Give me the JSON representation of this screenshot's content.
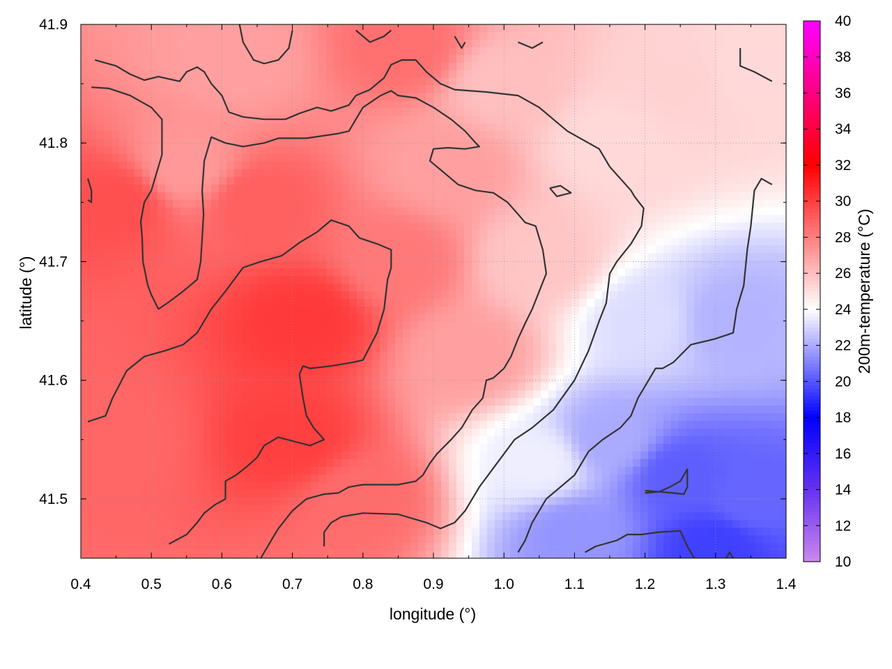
{
  "chart_data": {
    "type": "heatmap",
    "title": "",
    "xlabel": "longitude (°)",
    "ylabel": "latitude (°)",
    "colorbar_label": "200m-temperature (°C)",
    "xlim": [
      0.4,
      1.4
    ],
    "ylim": [
      41.45,
      41.9
    ],
    "x_ticks": [
      "0.4",
      "0.5",
      "0.6",
      "0.7",
      "0.8",
      "0.9",
      "1.0",
      "1.1",
      "1.2",
      "1.3",
      "1.4"
    ],
    "y_ticks": [
      "41.5",
      "41.6",
      "41.7",
      "41.8",
      "41.9"
    ],
    "colorbar_range": [
      10,
      40
    ],
    "colorbar_ticks": [
      "10",
      "12",
      "14",
      "16",
      "18",
      "20",
      "22",
      "24",
      "26",
      "28",
      "30",
      "32",
      "34",
      "36",
      "38",
      "40"
    ],
    "grid": true,
    "colormap": [
      {
        "value": 10,
        "color": "#cc88ee"
      },
      {
        "value": 14,
        "color": "#6633ee"
      },
      {
        "value": 18,
        "color": "#0000ff"
      },
      {
        "value": 24,
        "color": "#ffffff"
      },
      {
        "value": 32,
        "color": "#ff0000"
      },
      {
        "value": 40,
        "color": "#ff00ff"
      }
    ],
    "temperature_field": [
      {
        "lon": 0.45,
        "lat": 41.75,
        "t": 29.5
      },
      {
        "lon": 0.45,
        "lat": 41.55,
        "t": 28.8
      },
      {
        "lon": 0.55,
        "lat": 41.78,
        "t": 27.2
      },
      {
        "lon": 0.62,
        "lat": 41.87,
        "t": 27.0
      },
      {
        "lon": 0.72,
        "lat": 41.65,
        "t": 30.2
      },
      {
        "lon": 0.7,
        "lat": 41.55,
        "t": 30.0
      },
      {
        "lon": 0.65,
        "lat": 41.75,
        "t": 29.0
      },
      {
        "lon": 0.85,
        "lat": 41.7,
        "t": 28.2
      },
      {
        "lon": 0.86,
        "lat": 41.88,
        "t": 28.5
      },
      {
        "lon": 0.8,
        "lat": 41.5,
        "t": 28.6
      },
      {
        "lon": 0.92,
        "lat": 41.78,
        "t": 27.0
      },
      {
        "lon": 0.95,
        "lat": 41.62,
        "t": 27.0
      },
      {
        "lon": 1.0,
        "lat": 41.85,
        "t": 26.0
      },
      {
        "lon": 1.05,
        "lat": 41.7,
        "t": 25.8
      },
      {
        "lon": 1.15,
        "lat": 41.8,
        "t": 25.2
      },
      {
        "lon": 1.25,
        "lat": 41.85,
        "t": 25.4
      },
      {
        "lon": 1.35,
        "lat": 41.86,
        "t": 25.2
      },
      {
        "lon": 1.05,
        "lat": 41.53,
        "t": 23.6
      },
      {
        "lon": 1.15,
        "lat": 41.55,
        "t": 22.0
      },
      {
        "lon": 1.25,
        "lat": 41.52,
        "t": 20.2
      },
      {
        "lon": 1.35,
        "lat": 41.5,
        "t": 20.4
      },
      {
        "lon": 1.32,
        "lat": 41.65,
        "t": 22.2
      },
      {
        "lon": 1.2,
        "lat": 41.65,
        "t": 23.2
      },
      {
        "lon": 1.1,
        "lat": 41.47,
        "t": 21.5
      },
      {
        "lon": 1.3,
        "lat": 41.46,
        "t": 19.5
      }
    ],
    "contours": [
      [
        [
          0.42,
          41.87
        ],
        [
          0.45,
          41.865
        ],
        [
          0.47,
          41.858
        ],
        [
          0.49,
          41.853
        ],
        [
          0.51,
          41.856
        ],
        [
          0.54,
          41.852
        ],
        [
          0.55,
          41.86
        ],
        [
          0.565,
          41.864
        ],
        [
          0.575,
          41.86
        ],
        [
          0.585,
          41.85
        ],
        [
          0.6,
          41.84
        ],
        [
          0.61,
          41.826
        ],
        [
          0.63,
          41.822
        ],
        [
          0.66,
          41.82
        ],
        [
          0.69,
          41.82
        ],
        [
          0.71,
          41.825
        ],
        [
          0.735,
          41.83
        ],
        [
          0.755,
          41.827
        ],
        [
          0.78,
          41.832
        ],
        [
          0.79,
          41.84
        ],
        [
          0.81,
          41.845
        ],
        [
          0.83,
          41.855
        ],
        [
          0.84,
          41.866
        ],
        [
          0.855,
          41.87
        ],
        [
          0.875,
          41.87
        ],
        [
          0.89,
          41.86
        ],
        [
          0.91,
          41.85
        ],
        [
          0.93,
          41.845
        ],
        [
          0.975,
          41.843
        ],
        [
          1.02,
          41.84
        ],
        [
          1.05,
          41.83
        ],
        [
          1.07,
          41.82
        ],
        [
          1.09,
          41.81
        ],
        [
          1.12,
          41.8
        ],
        [
          1.135,
          41.795
        ],
        [
          1.15,
          41.78
        ],
        [
          1.165,
          41.77
        ],
        [
          1.18,
          41.76
        ],
        [
          1.185,
          41.755
        ],
        [
          1.198,
          41.745
        ],
        [
          1.195,
          41.73
        ],
        [
          1.18,
          41.715
        ],
        [
          1.16,
          41.7
        ],
        [
          1.15,
          41.69
        ],
        [
          1.145,
          41.665
        ],
        [
          1.135,
          41.65
        ],
        [
          1.12,
          41.625
        ],
        [
          1.1,
          41.6
        ],
        [
          1.07,
          41.575
        ],
        [
          1.04,
          41.56
        ],
        [
          1.015,
          41.55
        ],
        [
          0.99,
          41.53
        ],
        [
          0.965,
          41.51
        ],
        [
          0.945,
          41.49
        ],
        [
          0.93,
          41.48
        ],
        [
          0.91,
          41.475
        ],
        [
          0.89,
          41.48
        ],
        [
          0.85,
          41.487
        ],
        [
          0.8,
          41.488
        ],
        [
          0.77,
          41.485
        ],
        [
          0.755,
          41.48
        ],
        [
          0.745,
          41.472
        ],
        [
          0.745,
          41.46
        ]
      ],
      [
        [
          0.415,
          41.847
        ],
        [
          0.44,
          41.846
        ],
        [
          0.47,
          41.84
        ],
        [
          0.5,
          41.83
        ],
        [
          0.515,
          41.82
        ],
        [
          0.515,
          41.81
        ],
        [
          0.515,
          41.79
        ],
        [
          0.51,
          41.78
        ],
        [
          0.5,
          41.76
        ],
        [
          0.49,
          41.75
        ],
        [
          0.485,
          41.734
        ],
        [
          0.487,
          41.72
        ],
        [
          0.488,
          41.7
        ],
        [
          0.495,
          41.68
        ],
        [
          0.5,
          41.672
        ],
        [
          0.51,
          41.66
        ],
        [
          0.525,
          41.666
        ],
        [
          0.545,
          41.675
        ],
        [
          0.555,
          41.68
        ],
        [
          0.565,
          41.685
        ],
        [
          0.57,
          41.7
        ],
        [
          0.572,
          41.72
        ],
        [
          0.574,
          41.74
        ],
        [
          0.572,
          41.76
        ],
        [
          0.575,
          41.785
        ],
        [
          0.585,
          41.805
        ],
        [
          0.605,
          41.8
        ],
        [
          0.63,
          41.797
        ],
        [
          0.66,
          41.8
        ],
        [
          0.68,
          41.804
        ],
        [
          0.72,
          41.804
        ],
        [
          0.765,
          41.808
        ],
        [
          0.78,
          41.81
        ],
        [
          0.8,
          41.83
        ],
        [
          0.825,
          41.84
        ],
        [
          0.84,
          41.844
        ],
        [
          0.85,
          41.84
        ],
        [
          0.875,
          41.838
        ],
        [
          0.9,
          41.83
        ],
        [
          0.925,
          41.82
        ],
        [
          0.945,
          41.81
        ],
        [
          0.96,
          41.8
        ],
        [
          0.965,
          41.797
        ],
        [
          0.945,
          41.795
        ],
        [
          0.92,
          41.796
        ],
        [
          0.9,
          41.795
        ],
        [
          0.895,
          41.785
        ],
        [
          0.915,
          41.775
        ],
        [
          0.935,
          41.765
        ],
        [
          0.96,
          41.76
        ],
        [
          0.985,
          41.758
        ],
        [
          1.005,
          41.75
        ],
        [
          1.02,
          41.74
        ],
        [
          1.03,
          41.733
        ],
        [
          1.045,
          41.73
        ],
        [
          1.055,
          41.71
        ],
        [
          1.06,
          41.69
        ],
        [
          1.05,
          41.675
        ],
        [
          1.04,
          41.66
        ],
        [
          1.03,
          41.648
        ],
        [
          1.02,
          41.635
        ],
        [
          1.01,
          41.62
        ],
        [
          1.0,
          41.61
        ],
        [
          0.985,
          41.602
        ],
        [
          0.975,
          41.6
        ],
        [
          0.97,
          41.585
        ],
        [
          0.955,
          41.575
        ],
        [
          0.94,
          41.56
        ],
        [
          0.925,
          41.55
        ],
        [
          0.905,
          41.538
        ],
        [
          0.895,
          41.53
        ],
        [
          0.885,
          41.52
        ],
        [
          0.875,
          41.515
        ],
        [
          0.85,
          41.512
        ],
        [
          0.8,
          41.512
        ],
        [
          0.78,
          41.51
        ],
        [
          0.765,
          41.505
        ],
        [
          0.745,
          41.504
        ],
        [
          0.72,
          41.5
        ],
        [
          0.7,
          41.49
        ],
        [
          0.68,
          41.475
        ],
        [
          0.67,
          41.465
        ],
        [
          0.655,
          41.45
        ]
      ],
      [
        [
          0.41,
          41.752
        ],
        [
          0.415,
          41.75
        ],
        [
          0.415,
          41.76
        ],
        [
          0.41,
          41.77
        ]
      ],
      [
        [
          0.525,
          41.462
        ],
        [
          0.55,
          41.47
        ],
        [
          0.565,
          41.48
        ],
        [
          0.575,
          41.488
        ],
        [
          0.59,
          41.495
        ],
        [
          0.605,
          41.5
        ],
        [
          0.605,
          41.515
        ],
        [
          0.62,
          41.52
        ],
        [
          0.635,
          41.527
        ],
        [
          0.65,
          41.535
        ],
        [
          0.66,
          41.545
        ],
        [
          0.68,
          41.552
        ],
        [
          0.705,
          41.548
        ],
        [
          0.725,
          41.545
        ],
        [
          0.745,
          41.55
        ],
        [
          0.73,
          41.56
        ],
        [
          0.72,
          41.57
        ],
        [
          0.715,
          41.585
        ],
        [
          0.71,
          41.605
        ],
        [
          0.715,
          41.612
        ],
        [
          0.725,
          41.61
        ],
        [
          0.755,
          41.612
        ],
        [
          0.785,
          41.615
        ],
        [
          0.8,
          41.617
        ],
        [
          0.82,
          41.64
        ],
        [
          0.83,
          41.66
        ],
        [
          0.835,
          41.685
        ],
        [
          0.84,
          41.695
        ],
        [
          0.84,
          41.71
        ],
        [
          0.82,
          41.715
        ],
        [
          0.795,
          41.72
        ],
        [
          0.78,
          41.73
        ],
        [
          0.755,
          41.735
        ],
        [
          0.735,
          41.725
        ],
        [
          0.71,
          41.716
        ],
        [
          0.685,
          41.705
        ],
        [
          0.655,
          41.7
        ],
        [
          0.63,
          41.695
        ],
        [
          0.605,
          41.675
        ],
        [
          0.585,
          41.66
        ],
        [
          0.565,
          41.64
        ],
        [
          0.545,
          41.63
        ],
        [
          0.52,
          41.625
        ],
        [
          0.49,
          41.62
        ],
        [
          0.465,
          41.608
        ],
        [
          0.445,
          41.585
        ],
        [
          0.435,
          41.57
        ],
        [
          0.41,
          41.565
        ]
      ],
      [
        [
          1.065,
          41.762
        ],
        [
          1.08,
          41.764
        ],
        [
          1.095,
          41.758
        ],
        [
          1.075,
          41.755
        ],
        [
          1.065,
          41.762
        ]
      ],
      [
        [
          1.02,
          41.455
        ],
        [
          1.03,
          41.465
        ],
        [
          1.04,
          41.48
        ],
        [
          1.06,
          41.5
        ],
        [
          1.08,
          41.51
        ],
        [
          1.1,
          41.52
        ],
        [
          1.12,
          41.54
        ],
        [
          1.14,
          41.55
        ],
        [
          1.165,
          41.56
        ],
        [
          1.18,
          41.57
        ],
        [
          1.19,
          41.585
        ],
        [
          1.2,
          41.595
        ],
        [
          1.215,
          41.61
        ],
        [
          1.225,
          41.61
        ],
        [
          1.24,
          41.615
        ],
        [
          1.265,
          41.63
        ],
        [
          1.3,
          41.635
        ],
        [
          1.325,
          41.64
        ],
        [
          1.33,
          41.66
        ],
        [
          1.34,
          41.68
        ],
        [
          1.345,
          41.71
        ],
        [
          1.35,
          41.73
        ],
        [
          1.355,
          41.76
        ],
        [
          1.365,
          41.77
        ],
        [
          1.38,
          41.765
        ]
      ],
      [
        [
          1.2,
          41.505
        ],
        [
          1.22,
          41.506
        ],
        [
          1.235,
          41.51
        ],
        [
          1.25,
          41.515
        ],
        [
          1.255,
          41.52
        ],
        [
          1.26,
          41.525
        ],
        [
          1.26,
          41.51
        ],
        [
          1.255,
          41.504
        ],
        [
          1.24,
          41.505
        ],
        [
          1.2,
          41.507
        ]
      ],
      [
        [
          1.115,
          41.455
        ],
        [
          1.13,
          41.46
        ],
        [
          1.16,
          41.465
        ],
        [
          1.175,
          41.47
        ],
        [
          1.195,
          41.47
        ],
        [
          1.22,
          41.472
        ],
        [
          1.25,
          41.473
        ],
        [
          1.26,
          41.46
        ],
        [
          1.27,
          41.45
        ]
      ],
      [
        [
          1.335,
          41.88
        ],
        [
          1.335,
          41.865
        ],
        [
          1.355,
          41.86
        ],
        [
          1.38,
          41.852
        ]
      ],
      [
        [
          1.315,
          41.45
        ],
        [
          1.32,
          41.455
        ],
        [
          1.325,
          41.45
        ]
      ],
      [
        [
          0.625,
          41.9
        ],
        [
          0.63,
          41.885
        ],
        [
          0.645,
          41.87
        ],
        [
          0.66,
          41.867
        ],
        [
          0.68,
          41.87
        ],
        [
          0.695,
          41.88
        ],
        [
          0.7,
          41.895
        ]
      ],
      [
        [
          0.79,
          41.895
        ],
        [
          0.81,
          41.885
        ],
        [
          0.83,
          41.89
        ],
        [
          0.84,
          41.895
        ]
      ],
      [
        [
          0.93,
          41.89
        ],
        [
          0.94,
          41.88
        ],
        [
          0.945,
          41.885
        ]
      ],
      [
        [
          1.02,
          41.885
        ],
        [
          1.04,
          41.88
        ],
        [
          1.055,
          41.885
        ]
      ]
    ]
  }
}
